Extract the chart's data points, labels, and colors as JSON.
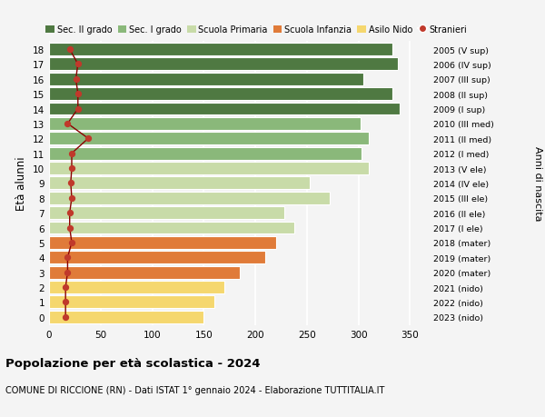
{
  "ages": [
    0,
    1,
    2,
    3,
    4,
    5,
    6,
    7,
    8,
    9,
    10,
    11,
    12,
    13,
    14,
    15,
    16,
    17,
    18
  ],
  "labels_right": [
    "2023 (nido)",
    "2022 (nido)",
    "2021 (nido)",
    "2020 (mater)",
    "2019 (mater)",
    "2018 (mater)",
    "2017 (I ele)",
    "2016 (II ele)",
    "2015 (III ele)",
    "2014 (IV ele)",
    "2013 (V ele)",
    "2012 (I med)",
    "2011 (II med)",
    "2010 (III med)",
    "2009 (I sup)",
    "2008 (II sup)",
    "2007 (III sup)",
    "2006 (IV sup)",
    "2005 (V sup)"
  ],
  "bar_values": [
    150,
    160,
    170,
    185,
    210,
    220,
    238,
    228,
    272,
    253,
    310,
    303,
    310,
    302,
    340,
    333,
    305,
    338,
    333
  ],
  "bar_colors": [
    "#f5d76e",
    "#f5d76e",
    "#f5d76e",
    "#e07b39",
    "#e07b39",
    "#e07b39",
    "#c8dba8",
    "#c8dba8",
    "#c8dba8",
    "#c8dba8",
    "#c8dba8",
    "#8ab87a",
    "#8ab87a",
    "#8ab87a",
    "#4f7942",
    "#4f7942",
    "#4f7942",
    "#4f7942",
    "#4f7942"
  ],
  "stranieri_values": [
    16,
    16,
    16,
    18,
    18,
    22,
    20,
    20,
    22,
    21,
    22,
    22,
    38,
    18,
    28,
    28,
    26,
    28,
    20
  ],
  "xlim": [
    0,
    370
  ],
  "xticks": [
    0,
    50,
    100,
    150,
    200,
    250,
    300,
    350
  ],
  "ylabel": "Età alunni",
  "right_ylabel": "Anni di nascita",
  "title": "Popolazione per età scolastica - 2024",
  "subtitle": "COMUNE DI RICCIONE (RN) - Dati ISTAT 1° gennaio 2024 - Elaborazione TUTTITALIA.IT",
  "legend_labels": [
    "Sec. II grado",
    "Sec. I grado",
    "Scuola Primaria",
    "Scuola Infanzia",
    "Asilo Nido",
    "Stranieri"
  ],
  "legend_colors": [
    "#4f7942",
    "#8ab87a",
    "#c8dba8",
    "#e07b39",
    "#f5d76e",
    "#c0392b"
  ],
  "bar_height": 0.85,
  "background_color": "#f4f4f4",
  "grid_color": "#ffffff",
  "stranieri_line_color": "#8b0000",
  "stranieri_dot_color": "#c0392b"
}
